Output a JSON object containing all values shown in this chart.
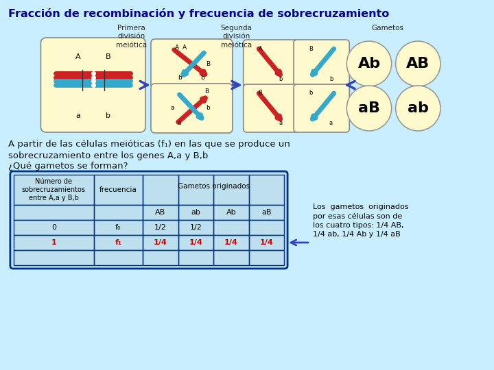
{
  "title": "Fracción de recombinación y frecuencia de sobrecruzamiento",
  "title_color": "#00008B",
  "bg_color": "#C8EEFF",
  "cell_bg": "#FFFACD",
  "label_primera": "Primera\ndivisión\nmeiótica",
  "label_segunda": "Segunda\ndivisión\nmeiótica",
  "label_gametos": "Gametos",
  "text1": "A partir de las células meióticas (f₁) en las que se produce un\nsobrecruzamiento entre los genes A,a y B,b",
  "text2": "¿Qué gametos se forman?",
  "table_header_col1": "Número de\nsobrecruzamientos\nentre A,a y B,b",
  "table_header_col2": "frecuencia",
  "table_header_gametos": "Gametos originados",
  "table_col_AB": "AB",
  "table_col_ab": "ab",
  "table_col_Ab": "Ab",
  "table_col_aB": "aB",
  "row0_num": "0",
  "row0_freq": "f₀",
  "row0_AB": "1/2",
  "row0_ab": "1/2",
  "row0_Ab": "",
  "row0_aB": "",
  "row1_num": "1",
  "row1_freq": "f₁",
  "row1_AB": "1/4",
  "row1_ab": "1/4",
  "row1_Ab": "1/4",
  "row1_aB": "1/4",
  "row1_color": "#CC0000",
  "side_text": "Los  gametos  originados\npor esas células son de\nlos cuatro tipos: 1/4 AB,\n1/4 ab, 1/4 Ab y 1/4 aB",
  "gametes_topleft": "Ab",
  "gametes_topright": "AB",
  "gametes_botleft": "aB",
  "gametes_botright": "ab",
  "arrow_color": "#3344BB",
  "table_bg": "#BEE0EE",
  "table_border": "#003388"
}
